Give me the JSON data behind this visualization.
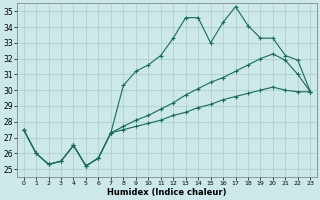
{
  "title": "",
  "xlabel": "Humidex (Indice chaleur)",
  "xlim": [
    -0.5,
    23.5
  ],
  "ylim": [
    24.5,
    35.5
  ],
  "yticks": [
    25,
    26,
    27,
    28,
    29,
    30,
    31,
    32,
    33,
    34,
    35
  ],
  "xticks": [
    0,
    1,
    2,
    3,
    4,
    5,
    6,
    7,
    8,
    9,
    10,
    11,
    12,
    13,
    14,
    15,
    16,
    17,
    18,
    19,
    20,
    21,
    22,
    23
  ],
  "background_color": "#cce8e8",
  "grid_color": "#aacccc",
  "line_color": "#1a6a5a",
  "line1_y": [
    27.5,
    26.0,
    25.3,
    25.5,
    26.5,
    25.2,
    25.7,
    27.3,
    30.3,
    31.2,
    31.6,
    32.2,
    33.3,
    34.6,
    34.6,
    33.0,
    34.3,
    35.3,
    34.1,
    33.3,
    33.3,
    32.2,
    31.9,
    29.9
  ],
  "line2_y": [
    27.5,
    26.0,
    25.3,
    25.5,
    26.5,
    25.2,
    25.7,
    27.3,
    27.7,
    28.1,
    28.4,
    28.8,
    29.2,
    29.7,
    30.1,
    30.5,
    30.8,
    31.2,
    31.6,
    32.0,
    32.3,
    31.9,
    31.0,
    29.9
  ],
  "line3_y": [
    27.5,
    26.0,
    25.3,
    25.5,
    26.5,
    25.2,
    25.7,
    27.3,
    27.5,
    27.7,
    27.9,
    28.1,
    28.4,
    28.6,
    28.9,
    29.1,
    29.4,
    29.6,
    29.8,
    30.0,
    30.2,
    30.0,
    29.9,
    29.9
  ]
}
